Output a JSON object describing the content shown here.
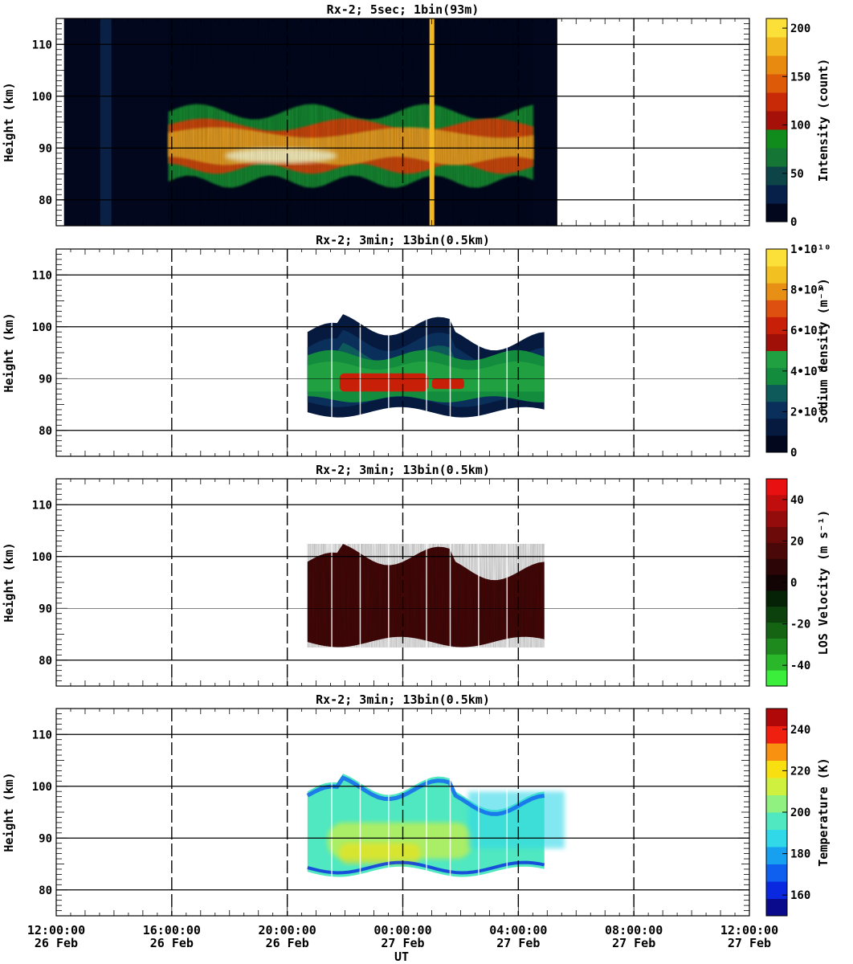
{
  "chart_data": [
    {
      "type": "heatmap",
      "title": "Rx-2;  5sec; 1bin(93m)",
      "ylabel": "Height (km)",
      "ylim": [
        75,
        115
      ],
      "yticks": [
        80,
        90,
        100,
        110
      ],
      "colorbar": {
        "label": "Intensity (count)",
        "ticks": [
          "0",
          "50",
          "100",
          "150",
          "200"
        ],
        "range": [
          0,
          210
        ],
        "colors": [
          "#02071e",
          "#06204a",
          "#0d4448",
          "#147534",
          "#0f8c1b",
          "#a51008",
          "#c82a08",
          "#dd5a08",
          "#e88a10",
          "#f2b820",
          "#fbe03a"
        ]
      },
      "x_range_hours": [
        0,
        24
      ],
      "data_x_range_hours": [
        0.27,
        17.35
      ],
      "grid": true
    },
    {
      "type": "heatmap",
      "title": "Rx-2; 3min; 13bin(0.5km)",
      "ylabel": "Height (km)",
      "ylim": [
        75,
        115
      ],
      "yticks": [
        80,
        90,
        100,
        110
      ],
      "colorbar": {
        "label": "Sodium density (m⁻³)",
        "ticks": [
          "0",
          "2•10⁹",
          "4•10⁹",
          "6•10⁹",
          "8•10⁹",
          "1•10¹⁰"
        ],
        "range": [
          0,
          10
        ],
        "colors": [
          "#02071e",
          "#061a40",
          "#0a2f5a",
          "#0e5a5a",
          "#138c3e",
          "#20a040",
          "#a01008",
          "#c82008",
          "#dd5010",
          "#e89015",
          "#f2c020",
          "#fbe03a"
        ]
      },
      "x_range_hours": [
        0,
        24
      ],
      "data_x_range_hours": [
        8.7,
        16.9
      ],
      "grid": true
    },
    {
      "type": "heatmap",
      "title": "Rx-2; 3min; 13bin(0.5km)",
      "ylabel": "Height (km)",
      "ylim": [
        75,
        115
      ],
      "yticks": [
        80,
        90,
        100,
        110
      ],
      "colorbar": {
        "label": "LOS Velocity (m s⁻¹)",
        "ticks": [
          "-40",
          "-20",
          "0",
          "20",
          "40"
        ],
        "range": [
          -50,
          50
        ],
        "colors": [
          "#3cee3c",
          "#2ab82a",
          "#1e8a1e",
          "#146414",
          "#0c400c",
          "#062206",
          "#120404",
          "#2c0606",
          "#4a0808",
          "#6c0a0a",
          "#940c0c",
          "#c00e0e",
          "#e81010"
        ]
      },
      "x_range_hours": [
        0,
        24
      ],
      "data_x_range_hours": [
        8.7,
        16.9
      ],
      "grid": true
    },
    {
      "type": "heatmap",
      "title": "Rx-2; 3min; 13bin(0.5km)",
      "ylabel": "Height (km)",
      "ylim": [
        75,
        115
      ],
      "yticks": [
        80,
        90,
        100,
        110
      ],
      "colorbar": {
        "label": "Temperature (K)",
        "ticks": [
          "160",
          "180",
          "200",
          "220",
          "240"
        ],
        "range": [
          150,
          250
        ],
        "colors": [
          "#0a0a8c",
          "#0a28e0",
          "#1060f0",
          "#18a0f0",
          "#30d8e8",
          "#50e8c0",
          "#90f080",
          "#d0f040",
          "#f8e010",
          "#f89010",
          "#f02010",
          "#b00808"
        ]
      },
      "x_range_hours": [
        0,
        24
      ],
      "data_x_range_hours": [
        8.7,
        16.9
      ],
      "grid": true
    }
  ],
  "xaxis": {
    "label": "UT",
    "ticks": [
      {
        "time": "12:00:00",
        "date": "26 Feb"
      },
      {
        "time": "16:00:00",
        "date": "26 Feb"
      },
      {
        "time": "20:00:00",
        "date": "26 Feb"
      },
      {
        "time": "00:00:00",
        "date": "27 Feb"
      },
      {
        "time": "04:00:00",
        "date": "27 Feb"
      },
      {
        "time": "08:00:00",
        "date": "27 Feb"
      },
      {
        "time": "12:00:00",
        "date": "27 Feb"
      }
    ]
  }
}
